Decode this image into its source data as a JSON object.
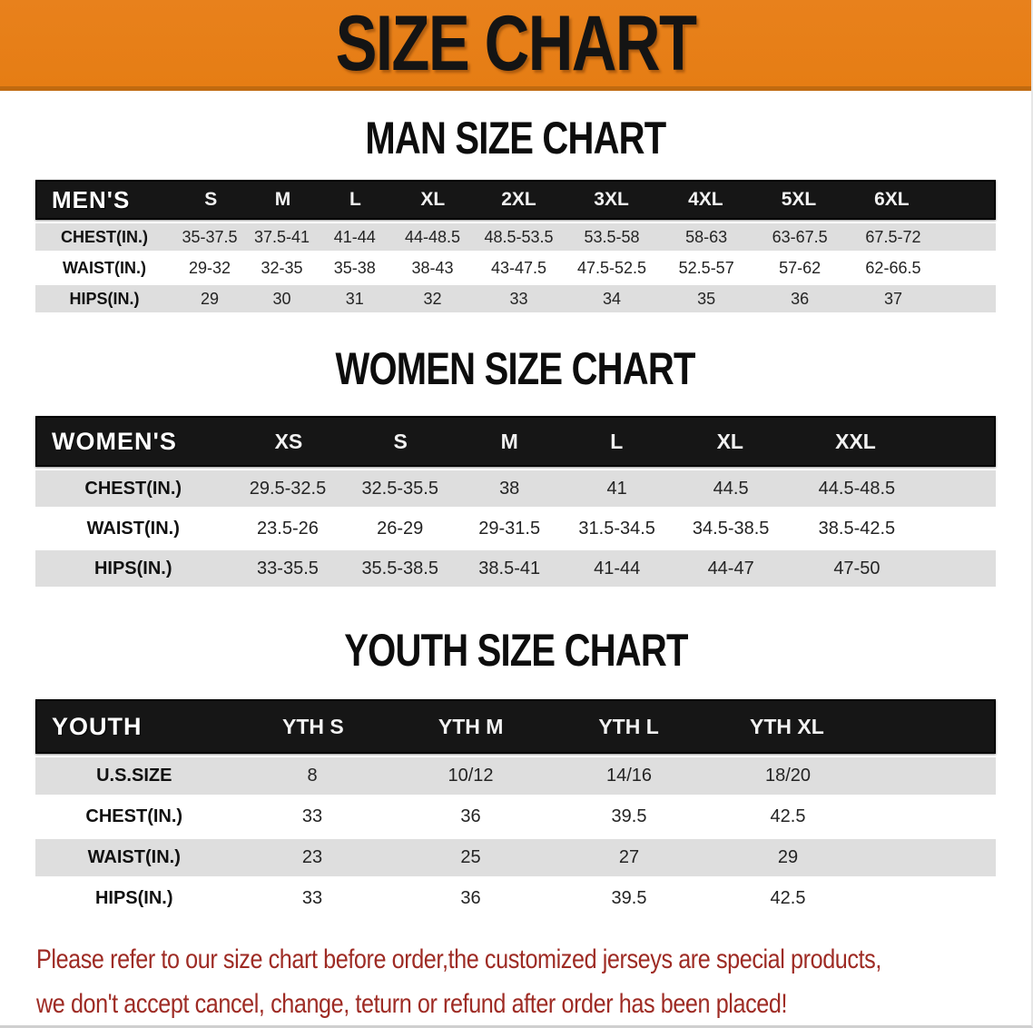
{
  "banner": {
    "title": "SIZE CHART",
    "bg_color": "#e8811c",
    "text_color": "#141414"
  },
  "sections": [
    {
      "id": "men",
      "title": "MAN SIZE CHART",
      "header_label": "MEN'S",
      "sizes": [
        "S",
        "M",
        "L",
        "XL",
        "2XL",
        "3XL",
        "4XL",
        "5XL",
        "6XL"
      ],
      "rows": [
        {
          "label": "CHEST(IN.)",
          "values": [
            "35-37.5",
            "37.5-41",
            "41-44",
            "44-48.5",
            "48.5-53.5",
            "53.5-58",
            "58-63",
            "63-67.5",
            "67.5-72"
          ]
        },
        {
          "label": "WAIST(IN.)",
          "values": [
            "29-32",
            "32-35",
            "35-38",
            "38-43",
            "43-47.5",
            "47.5-52.5",
            "52.5-57",
            "57-62",
            "62-66.5"
          ]
        },
        {
          "label": "HIPS(IN.)",
          "values": [
            "29",
            "30",
            "31",
            "32",
            "33",
            "34",
            "35",
            "36",
            "37"
          ]
        }
      ]
    },
    {
      "id": "women",
      "title": "WOMEN SIZE CHART",
      "header_label": "WOMEN'S",
      "sizes": [
        "XS",
        "S",
        "M",
        "L",
        "XL",
        "XXL"
      ],
      "rows": [
        {
          "label": "CHEST(IN.)",
          "values": [
            "29.5-32.5",
            "32.5-35.5",
            "38",
            "41",
            "44.5",
            "44.5-48.5"
          ]
        },
        {
          "label": "WAIST(IN.)",
          "values": [
            "23.5-26",
            "26-29",
            "29-31.5",
            "31.5-34.5",
            "34.5-38.5",
            "38.5-42.5"
          ]
        },
        {
          "label": "HIPS(IN.)",
          "values": [
            "33-35.5",
            "35.5-38.5",
            "38.5-41",
            "41-44",
            "44-47",
            "47-50"
          ]
        }
      ]
    },
    {
      "id": "youth",
      "title": "YOUTH SIZE CHART",
      "header_label": "YOUTH",
      "sizes": [
        "YTH S",
        "YTH M",
        "YTH L",
        "YTH XL"
      ],
      "rows": [
        {
          "label": "U.S.SIZE",
          "values": [
            "8",
            "10/12",
            "14/16",
            "18/20"
          ]
        },
        {
          "label": "CHEST(IN.)",
          "values": [
            "33",
            "36",
            "39.5",
            "42.5"
          ]
        },
        {
          "label": "WAIST(IN.)",
          "values": [
            "23",
            "25",
            "27",
            "29"
          ]
        },
        {
          "label": "HIPS(IN.)",
          "values": [
            "33",
            "36",
            "39.5",
            "42.5"
          ]
        }
      ]
    }
  ],
  "table_colors": {
    "header_bg": "#161616",
    "header_text": "#ffffff",
    "stripe_gray": "#dedede",
    "stripe_white": "#ffffff"
  },
  "footer": {
    "lines": [
      "Please refer to our size chart before order,the customized jerseys are special products,",
      "we don't accept cancel, change, teturn or refund after order has been placed!"
    ],
    "color": "#9e2b24"
  }
}
